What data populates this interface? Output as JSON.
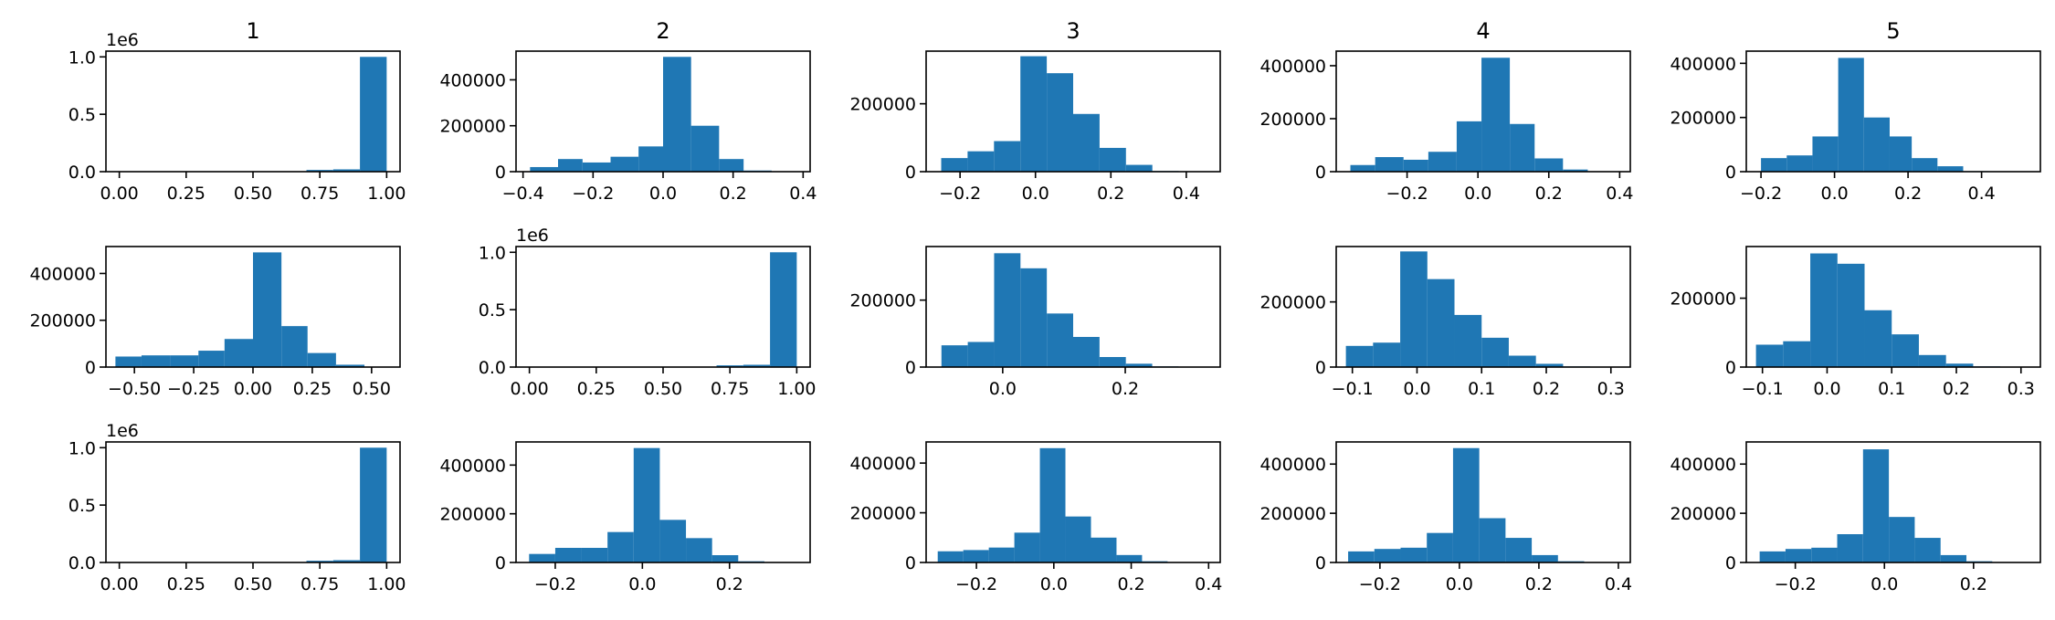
{
  "chart_data": {
    "type": "histogram-grid",
    "rows": 3,
    "cols": 5,
    "bar_color": "#1f77b4",
    "column_titles": [
      "1",
      "2",
      "3",
      "4",
      "5"
    ],
    "panels": [
      {
        "row": 0,
        "col": 0,
        "xlim": [
          -0.05,
          1.05
        ],
        "ylim": [
          0,
          1.05
        ],
        "offset_label": "1e6",
        "xticks": [
          0.0,
          0.25,
          0.5,
          0.75,
          1.0
        ],
        "xtick_labels": [
          "0.00",
          "0.25",
          "0.50",
          "0.75",
          "1.00"
        ],
        "yticks": [
          0.0,
          0.5,
          1.0
        ],
        "ytick_labels": [
          "0.0",
          "0.5",
          "1.0"
        ],
        "bin_edges": [
          0.0,
          0.1,
          0.2,
          0.3,
          0.4,
          0.5,
          0.6,
          0.7,
          0.8,
          0.9,
          1.0
        ],
        "values": [
          0.0,
          0.0,
          0.0,
          0.0,
          0.0,
          0.0,
          0.002,
          0.015,
          0.02,
          1.0
        ]
      },
      {
        "row": 0,
        "col": 1,
        "xlim": [
          -0.42,
          0.42
        ],
        "ylim": [
          0,
          525000
        ],
        "xticks": [
          -0.4,
          -0.2,
          0.0,
          0.2,
          0.4
        ],
        "xtick_labels": [
          "−0.4",
          "−0.2",
          "0.0",
          "0.2",
          "0.4"
        ],
        "yticks": [
          0,
          200000,
          400000
        ],
        "ytick_labels": [
          "0",
          "200000",
          "400000"
        ],
        "bin_edges": [
          -0.38,
          -0.3,
          -0.23,
          -0.15,
          -0.07,
          0.0,
          0.08,
          0.16,
          0.23,
          0.31,
          0.38
        ],
        "values": [
          20000,
          55000,
          40000,
          65000,
          110000,
          500000,
          200000,
          55000,
          5000,
          1000
        ]
      },
      {
        "row": 0,
        "col": 2,
        "xlim": [
          -0.29,
          0.49
        ],
        "ylim": [
          0,
          355000
        ],
        "xticks": [
          -0.2,
          0.0,
          0.2,
          0.4
        ],
        "xtick_labels": [
          "−0.2",
          "0.0",
          "0.2",
          "0.4"
        ],
        "yticks": [
          0,
          200000
        ],
        "ytick_labels": [
          "0",
          "200000"
        ],
        "bin_edges": [
          -0.25,
          -0.18,
          -0.11,
          -0.04,
          0.03,
          0.1,
          0.17,
          0.24,
          0.31,
          0.38,
          0.45
        ],
        "values": [
          40000,
          60000,
          90000,
          340000,
          290000,
          170000,
          70000,
          20000,
          2000,
          500
        ]
      },
      {
        "row": 0,
        "col": 3,
        "xlim": [
          -0.4,
          0.43
        ],
        "ylim": [
          0,
          455000
        ],
        "xticks": [
          -0.2,
          0.0,
          0.2,
          0.4
        ],
        "xtick_labels": [
          "−0.2",
          "0.0",
          "0.2",
          "0.4"
        ],
        "yticks": [
          0,
          200000,
          400000
        ],
        "ytick_labels": [
          "0",
          "200000",
          "400000"
        ],
        "bin_edges": [
          -0.36,
          -0.29,
          -0.21,
          -0.14,
          -0.06,
          0.01,
          0.09,
          0.16,
          0.24,
          0.31,
          0.39
        ],
        "values": [
          25000,
          55000,
          45000,
          75000,
          190000,
          430000,
          180000,
          50000,
          8000,
          1000
        ]
      },
      {
        "row": 0,
        "col": 4,
        "xlim": [
          -0.24,
          0.56
        ],
        "ylim": [
          0,
          445000
        ],
        "xticks": [
          -0.2,
          0.0,
          0.2,
          0.4
        ],
        "xtick_labels": [
          "−0.2",
          "0.0",
          "0.2",
          "0.4"
        ],
        "yticks": [
          0,
          200000,
          400000
        ],
        "ytick_labels": [
          "0",
          "200000",
          "400000"
        ],
        "bin_edges": [
          -0.2,
          -0.13,
          -0.06,
          0.01,
          0.08,
          0.15,
          0.21,
          0.28,
          0.35,
          0.42,
          0.49
        ],
        "values": [
          50000,
          60000,
          130000,
          420000,
          200000,
          130000,
          50000,
          20000,
          2000,
          500
        ]
      },
      {
        "row": 1,
        "col": 0,
        "xlim": [
          -0.62,
          0.62
        ],
        "ylim": [
          0,
          515000
        ],
        "xticks": [
          -0.5,
          -0.25,
          0.0,
          0.25,
          0.5
        ],
        "xtick_labels": [
          "−0.50",
          "−0.25",
          "0.00",
          "0.25",
          "0.50"
        ],
        "yticks": [
          0,
          200000,
          400000
        ],
        "ytick_labels": [
          "0",
          "200000",
          "400000"
        ],
        "bin_edges": [
          -0.58,
          -0.47,
          -0.35,
          -0.23,
          -0.12,
          0.0,
          0.12,
          0.23,
          0.35,
          0.47,
          0.58
        ],
        "values": [
          45000,
          50000,
          50000,
          70000,
          120000,
          490000,
          175000,
          60000,
          10000,
          2000
        ]
      },
      {
        "row": 1,
        "col": 1,
        "xlim": [
          -0.05,
          1.05
        ],
        "ylim": [
          0,
          1.05
        ],
        "offset_label": "1e6",
        "xticks": [
          0.0,
          0.25,
          0.5,
          0.75,
          1.0
        ],
        "xtick_labels": [
          "0.00",
          "0.25",
          "0.50",
          "0.75",
          "1.00"
        ],
        "yticks": [
          0.0,
          0.5,
          1.0
        ],
        "ytick_labels": [
          "0.0",
          "0.5",
          "1.0"
        ],
        "bin_edges": [
          0.0,
          0.1,
          0.2,
          0.3,
          0.4,
          0.5,
          0.6,
          0.7,
          0.8,
          0.9,
          1.0
        ],
        "values": [
          0.0,
          0.0,
          0.0,
          0.0,
          0.0,
          0.0,
          0.002,
          0.015,
          0.02,
          1.0
        ]
      },
      {
        "row": 1,
        "col": 2,
        "xlim": [
          -0.125,
          0.355
        ],
        "ylim": [
          0,
          360000
        ],
        "xticks": [
          0.0,
          0.2
        ],
        "xtick_labels": [
          "0.0",
          "0.2"
        ],
        "bin_edges": [
          -0.1,
          -0.057,
          -0.014,
          0.029,
          0.072,
          0.115,
          0.158,
          0.201,
          0.244,
          0.287,
          0.33
        ],
        "yticks": [
          0,
          200000
        ],
        "ytick_labels": [
          "0",
          "200000"
        ],
        "values": [
          65000,
          75000,
          340000,
          295000,
          160000,
          90000,
          30000,
          10000,
          2000,
          500
        ]
      },
      {
        "row": 1,
        "col": 3,
        "xlim": [
          -0.125,
          0.33
        ],
        "ylim": [
          0,
          370000
        ],
        "xticks": [
          -0.1,
          0.0,
          0.1,
          0.2,
          0.3
        ],
        "xtick_labels": [
          "−0.1",
          "0.0",
          "0.1",
          "0.2",
          "0.3"
        ],
        "yticks": [
          0,
          200000
        ],
        "ytick_labels": [
          "0",
          "200000"
        ],
        "bin_edges": [
          -0.11,
          -0.068,
          -0.026,
          0.016,
          0.058,
          0.1,
          0.142,
          0.184,
          0.226,
          0.268,
          0.31
        ],
        "values": [
          65000,
          75000,
          355000,
          270000,
          160000,
          90000,
          35000,
          10000,
          2000,
          500
        ]
      },
      {
        "row": 1,
        "col": 4,
        "xlim": [
          -0.125,
          0.33
        ],
        "ylim": [
          0,
          350000
        ],
        "xticks": [
          -0.1,
          0.0,
          0.1,
          0.2,
          0.3
        ],
        "xtick_labels": [
          "−0.1",
          "0.0",
          "0.1",
          "0.2",
          "0.3"
        ],
        "yticks": [
          0,
          200000
        ],
        "ytick_labels": [
          "0",
          "200000"
        ],
        "bin_edges": [
          -0.11,
          -0.068,
          -0.026,
          0.016,
          0.058,
          0.1,
          0.142,
          0.184,
          0.226,
          0.268,
          0.31
        ],
        "values": [
          65000,
          75000,
          330000,
          300000,
          165000,
          95000,
          35000,
          10000,
          2000,
          500
        ]
      },
      {
        "row": 2,
        "col": 0,
        "xlim": [
          -0.05,
          1.05
        ],
        "ylim": [
          0,
          1.05
        ],
        "offset_label": "1e6",
        "xticks": [
          0.0,
          0.25,
          0.5,
          0.75,
          1.0
        ],
        "xtick_labels": [
          "0.00",
          "0.25",
          "0.50",
          "0.75",
          "1.00"
        ],
        "yticks": [
          0.0,
          0.5,
          1.0
        ],
        "ytick_labels": [
          "0.0",
          "0.5",
          "1.0"
        ],
        "bin_edges": [
          0.0,
          0.1,
          0.2,
          0.3,
          0.4,
          0.5,
          0.6,
          0.7,
          0.8,
          0.9,
          1.0
        ],
        "values": [
          0.0,
          0.0,
          0.0,
          0.0,
          0.0,
          0.0,
          0.002,
          0.015,
          0.02,
          1.0
        ]
      },
      {
        "row": 2,
        "col": 1,
        "xlim": [
          -0.29,
          0.385
        ],
        "ylim": [
          0,
          495000
        ],
        "xticks": [
          -0.2,
          0.0,
          0.2
        ],
        "xtick_labels": [
          "−0.2",
          "0.0",
          "0.2"
        ],
        "yticks": [
          0,
          200000,
          400000
        ],
        "ytick_labels": [
          "0",
          "200000",
          "400000"
        ],
        "bin_edges": [
          -0.26,
          -0.2,
          -0.14,
          -0.08,
          -0.02,
          0.04,
          0.1,
          0.16,
          0.22,
          0.28,
          0.34
        ],
        "values": [
          35000,
          60000,
          60000,
          125000,
          470000,
          175000,
          100000,
          30000,
          5000,
          1000
        ]
      },
      {
        "row": 2,
        "col": 2,
        "xlim": [
          -0.33,
          0.43
        ],
        "ylim": [
          0,
          485000
        ],
        "xticks": [
          -0.2,
          0.0,
          0.2,
          0.4
        ],
        "xtick_labels": [
          "−0.2",
          "0.0",
          "0.2",
          "0.4"
        ],
        "yticks": [
          0,
          200000,
          400000
        ],
        "ytick_labels": [
          "0",
          "200000",
          "400000"
        ],
        "bin_edges": [
          -0.3,
          -0.234,
          -0.168,
          -0.102,
          -0.036,
          0.03,
          0.096,
          0.162,
          0.228,
          0.294,
          0.36
        ],
        "values": [
          45000,
          50000,
          60000,
          120000,
          460000,
          185000,
          100000,
          30000,
          5000,
          1000
        ]
      },
      {
        "row": 2,
        "col": 3,
        "xlim": [
          -0.31,
          0.43
        ],
        "ylim": [
          0,
          490000
        ],
        "xticks": [
          -0.2,
          0.0,
          0.2,
          0.4
        ],
        "xtick_labels": [
          "−0.2",
          "0.0",
          "0.2",
          "0.4"
        ],
        "yticks": [
          0,
          200000,
          400000
        ],
        "ytick_labels": [
          "0",
          "200000",
          "400000"
        ],
        "bin_edges": [
          -0.28,
          -0.214,
          -0.148,
          -0.082,
          -0.016,
          0.05,
          0.116,
          0.182,
          0.248,
          0.314,
          0.38
        ],
        "values": [
          45000,
          55000,
          60000,
          120000,
          465000,
          180000,
          100000,
          30000,
          5000,
          1000
        ]
      },
      {
        "row": 2,
        "col": 4,
        "xlim": [
          -0.31,
          0.35
        ],
        "ylim": [
          0,
          490000
        ],
        "xticks": [
          -0.2,
          0.0,
          0.2
        ],
        "xtick_labels": [
          "−0.2",
          "0.0",
          "0.2"
        ],
        "yticks": [
          0,
          200000,
          400000
        ],
        "ytick_labels": [
          "0",
          "200000",
          "400000"
        ],
        "bin_edges": [
          -0.28,
          -0.222,
          -0.164,
          -0.106,
          -0.048,
          0.01,
          0.068,
          0.126,
          0.184,
          0.242,
          0.3
        ],
        "values": [
          45000,
          55000,
          60000,
          115000,
          460000,
          185000,
          100000,
          30000,
          5000,
          1000
        ]
      }
    ]
  }
}
